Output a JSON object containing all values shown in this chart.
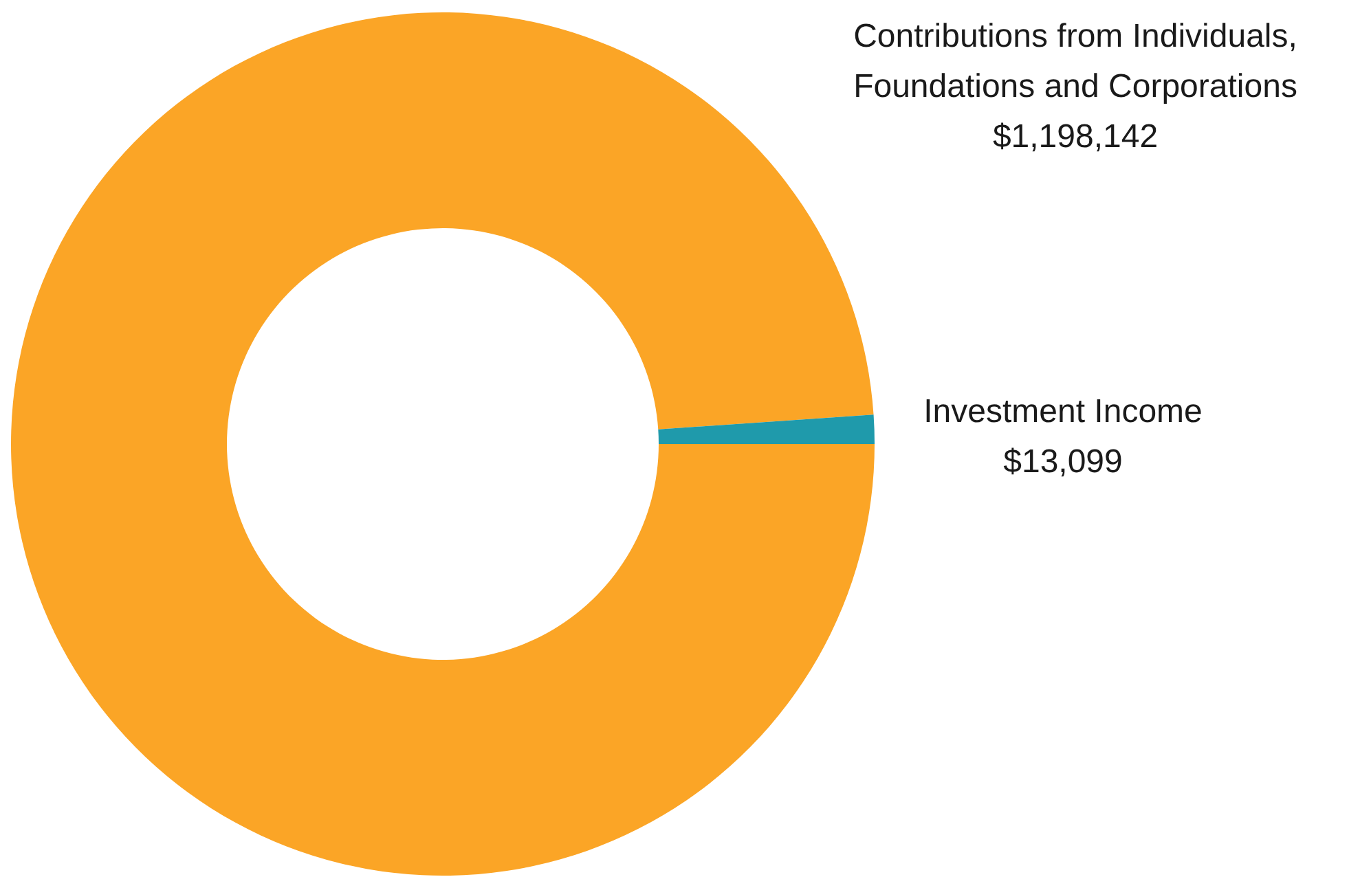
{
  "chart_data": {
    "type": "donut",
    "categories": [
      "Contributions from Individuals, Foundations and Corporations",
      "Investment Income"
    ],
    "values": [
      1198142,
      13099
    ],
    "colors": [
      "#fba526",
      "#1f9aab"
    ],
    "value_labels": [
      "$1,198,142",
      "$13,099"
    ]
  }
}
